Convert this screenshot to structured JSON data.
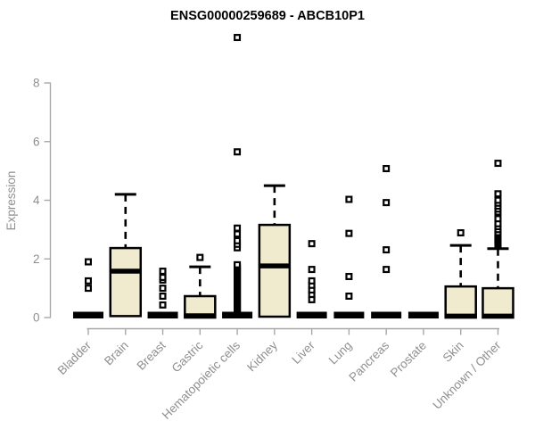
{
  "page": {
    "background": "#ffffff"
  },
  "chart_data": {
    "type": "boxplot",
    "title": "ENSG00000259689 - ABCB10P1",
    "ylabel": "Expression",
    "xlabel": "",
    "yticks": [
      0,
      2,
      4,
      6,
      8
    ],
    "ylim": [
      0,
      9.8
    ],
    "grid": false,
    "legend": false,
    "categories": [
      "Bladder",
      "Brain",
      "Breast",
      "Gastric",
      "Hematopoietic cells",
      "Kidney",
      "Liver",
      "Lung",
      "Pancreas",
      "Prostate",
      "Skin",
      "Unknown / Other"
    ],
    "boxes": [
      {
        "category": "Bladder",
        "q1": 0,
        "median": 0,
        "q3": 0,
        "whisker_low": 0,
        "whisker_high": 0,
        "outliers": [
          1.0,
          1.25,
          1.9
        ]
      },
      {
        "category": "Brain",
        "q1": 0.05,
        "median": 1.58,
        "q3": 2.37,
        "whisker_low": 0.05,
        "whisker_high": 4.2,
        "outliers": []
      },
      {
        "category": "Breast",
        "q1": 0,
        "median": 0,
        "q3": 0,
        "whisker_low": 0,
        "whisker_high": 0,
        "outliers": [
          0.43,
          0.73,
          1.0,
          1.28,
          1.37,
          1.58
        ]
      },
      {
        "category": "Gastric",
        "q1": 0,
        "median": 0.06,
        "q3": 0.73,
        "whisker_low": 0,
        "whisker_high": 1.73,
        "outliers": [
          2.05
        ]
      },
      {
        "category": "Hematopoietic cells",
        "q1": 0,
        "median": 0,
        "q3": 0,
        "whisker_low": 0,
        "whisker_high": 0,
        "outliers": [
          0.15,
          0.2,
          0.25,
          0.3,
          0.35,
          0.4,
          0.45,
          0.5,
          0.55,
          0.6,
          0.65,
          0.7,
          0.75,
          0.8,
          0.85,
          0.9,
          0.95,
          1.0,
          1.05,
          1.1,
          1.15,
          1.2,
          1.25,
          1.3,
          1.35,
          1.4,
          1.45,
          1.5,
          1.55,
          1.6,
          1.65,
          1.7,
          1.75,
          1.8,
          2.38,
          2.5,
          2.62,
          2.85,
          3.05,
          5.65,
          9.55
        ]
      },
      {
        "category": "Kidney",
        "q1": 0.03,
        "median": 1.76,
        "q3": 3.16,
        "whisker_low": 0.03,
        "whisker_high": 4.5,
        "outliers": []
      },
      {
        "category": "Liver",
        "q1": 0,
        "median": 0,
        "q3": 0,
        "whisker_low": 0,
        "whisker_high": 0,
        "outliers": [
          0.61,
          0.79,
          0.94,
          1.1,
          1.25,
          1.64,
          2.52
        ]
      },
      {
        "category": "Lung",
        "q1": 0,
        "median": 0,
        "q3": 0,
        "whisker_low": 0,
        "whisker_high": 0,
        "outliers": [
          0.73,
          1.4,
          2.87,
          4.03
        ]
      },
      {
        "category": "Pancreas",
        "q1": 0,
        "median": 0,
        "q3": 0,
        "whisker_low": 0,
        "whisker_high": 0,
        "outliers": [
          1.64,
          2.31,
          3.92,
          5.08
        ]
      },
      {
        "category": "Prostate",
        "q1": 0,
        "median": 0,
        "q3": 0,
        "whisker_low": 0,
        "whisker_high": 0,
        "outliers": []
      },
      {
        "category": "Skin",
        "q1": 0,
        "median": 0.05,
        "q3": 1.06,
        "whisker_low": 0,
        "whisker_high": 2.46,
        "outliers": [
          2.89
        ]
      },
      {
        "category": "Unknown / Other",
        "q1": 0,
        "median": 0.05,
        "q3": 1.0,
        "whisker_low": 0,
        "whisker_high": 2.35,
        "outliers": [
          2.5,
          2.55,
          2.6,
          2.65,
          2.7,
          2.75,
          2.8,
          2.85,
          2.9,
          3.0,
          3.1,
          3.2,
          3.37,
          3.6,
          3.7,
          3.8,
          3.9,
          4.0,
          4.22,
          5.26
        ]
      }
    ],
    "colors": {
      "box_fill": "#f0ebce",
      "box_stroke": "#000000",
      "median": "#000000",
      "whisker": "#000000",
      "outlier_fill": "#ffffff",
      "outlier_stroke": "#000000",
      "axis_line": "#a8a8a8",
      "tick_text": "#8f8f8f",
      "title_text": "#000000"
    }
  }
}
